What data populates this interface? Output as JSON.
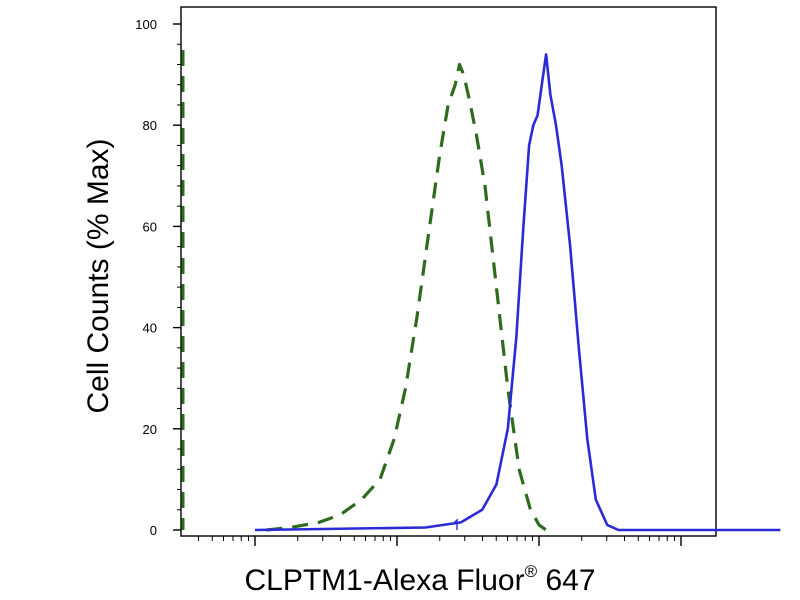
{
  "chart_data": {
    "type": "line",
    "title": "",
    "xlabel": "CLPTM1-Alexa Fluor",
    "xlabel_superscript": "®",
    "xlabel_suffix": " 647",
    "ylabel": "Cell Counts (% Max)",
    "x_scale": "log",
    "x_ticks_labeled": false,
    "ylim": [
      0,
      100
    ],
    "yticks": [
      0,
      20,
      40,
      60,
      80,
      100
    ],
    "grid": false,
    "legend": "none",
    "series": [
      {
        "style": "dashed",
        "color": "#2e6b1f",
        "points": [
          [
            0.08,
            0
          ],
          [
            0.25,
            0.5
          ],
          [
            0.45,
            1.5
          ],
          [
            0.6,
            3
          ],
          [
            0.75,
            6
          ],
          [
            0.88,
            10
          ],
          [
            0.98,
            18
          ],
          [
            1.06,
            28
          ],
          [
            1.14,
            42
          ],
          [
            1.22,
            58
          ],
          [
            1.3,
            74
          ],
          [
            1.36,
            84
          ],
          [
            1.41,
            88
          ],
          [
            1.44,
            92
          ],
          [
            1.47,
            90
          ],
          [
            1.51,
            85
          ],
          [
            1.56,
            78
          ],
          [
            1.62,
            68
          ],
          [
            1.7,
            48
          ],
          [
            1.78,
            28
          ],
          [
            1.86,
            12
          ],
          [
            1.94,
            4
          ],
          [
            2.0,
            1
          ],
          [
            2.05,
            0
          ]
        ]
      },
      {
        "style": "solid",
        "color": "#2a2ad6",
        "points": [
          [
            0.0,
            0
          ],
          [
            1.2,
            0.5
          ],
          [
            1.45,
            1.5
          ],
          [
            1.6,
            4
          ],
          [
            1.7,
            9
          ],
          [
            1.78,
            20
          ],
          [
            1.84,
            38
          ],
          [
            1.89,
            60
          ],
          [
            1.93,
            76
          ],
          [
            1.96,
            80
          ],
          [
            1.99,
            82
          ],
          [
            2.02,
            88
          ],
          [
            2.05,
            94
          ],
          [
            2.08,
            86
          ],
          [
            2.12,
            80
          ],
          [
            2.16,
            72
          ],
          [
            2.22,
            56
          ],
          [
            2.28,
            36
          ],
          [
            2.34,
            18
          ],
          [
            2.4,
            6
          ],
          [
            2.48,
            1
          ],
          [
            2.56,
            0
          ],
          [
            3.7,
            0
          ]
        ]
      }
    ]
  }
}
